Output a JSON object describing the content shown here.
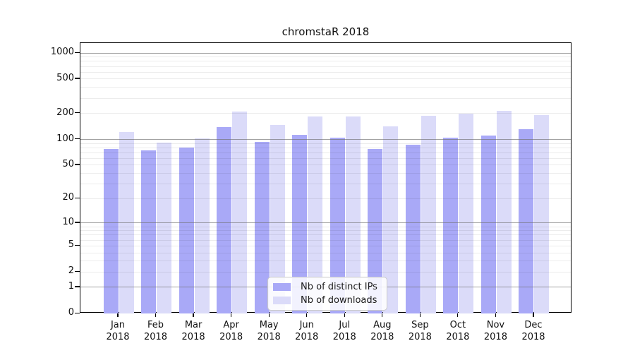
{
  "chart_data": {
    "type": "bar",
    "title": "chromstaR 2018",
    "categories": [
      "Jan 2018",
      "Feb 2018",
      "Mar 2018",
      "Apr 2018",
      "May 2018",
      "Jun 2018",
      "Jul 2018",
      "Aug 2018",
      "Sep 2018",
      "Oct 2018",
      "Nov 2018",
      "Dec 2018"
    ],
    "series": [
      {
        "name": "Nb of distinct IPs",
        "color": "#a9a9f7",
        "values": [
          78,
          74,
          80,
          138,
          94,
          114,
          105,
          78,
          87,
          105,
          112,
          132
        ]
      },
      {
        "name": "Nb of downloads",
        "color": "#dbdbf9",
        "values": [
          122,
          91,
          103,
          210,
          148,
          185,
          185,
          142,
          189,
          200,
          215,
          193
        ]
      }
    ],
    "yticks": [
      0,
      1,
      2,
      5,
      10,
      20,
      50,
      100,
      200,
      500,
      1000
    ],
    "ylim": [
      0,
      1000
    ],
    "y_scale": "log10(value+1)",
    "xlabel": "",
    "ylabel": "",
    "grid": true,
    "legend_position": "bottom-center",
    "colors": {
      "axis": "#000000",
      "major_gridline": "#a8a8a8",
      "minor_gridline": "#ededed",
      "background": "#ffffff"
    }
  }
}
